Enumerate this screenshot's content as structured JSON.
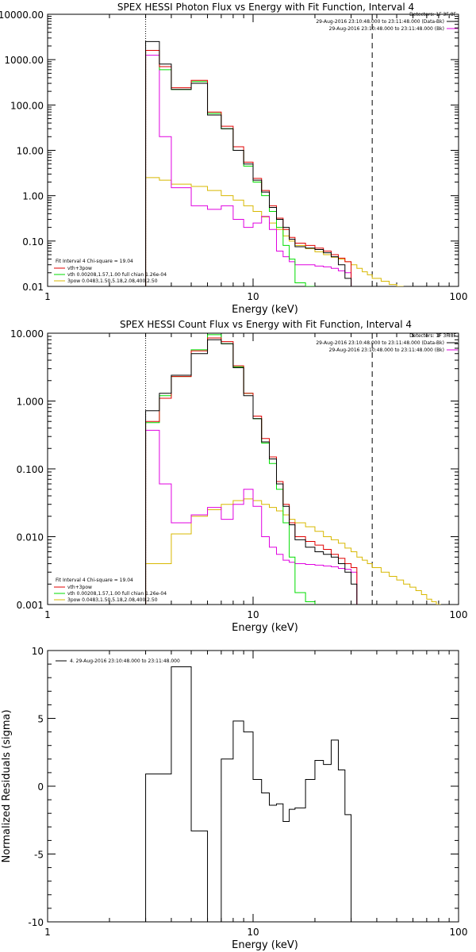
{
  "page": {
    "background": "#ffffff"
  },
  "colors": {
    "axis": "#000000",
    "black": "#000000",
    "red": "#e00000",
    "green": "#00dd00",
    "magenta": "#e000e0",
    "yellow": "#d8b800"
  },
  "chart_data": [
    {
      "type": "line",
      "step": true,
      "title": "SPEX HESSI Photon Flux vs Energy with Fit Function, Interval 4",
      "xlabel": "Energy (keV)",
      "ylabel": "",
      "xscale": "log",
      "yscale": "log",
      "xlim": [
        1,
        100
      ],
      "ylim": [
        0.01,
        10000
      ],
      "xticks": [
        1,
        10,
        100
      ],
      "xtick_labels": [
        "1",
        "10",
        "100"
      ],
      "yticks": [
        0.01,
        0.1,
        1,
        10,
        100,
        1000,
        10000
      ],
      "ytick_labels": [
        "0.01",
        "0.10",
        "1.00",
        "10.00",
        "100.00",
        "1000.00",
        "10000.00"
      ],
      "vlines": [
        {
          "x": 3,
          "style": "dotted"
        },
        {
          "x": 38,
          "style": "dashed"
        }
      ],
      "legend_header": "Detectors: 1F 3F 8F",
      "legend_right": [
        {
          "text": "29-Aug-2016 23:10:48.000 to 23:11:48.000 (Data-Bk)",
          "color": "#000000"
        },
        {
          "text": "29-Aug-2016 23:10:48.000 to 23:11:48.000 (Bk)",
          "color": "#e000e0"
        }
      ],
      "legend_left_header": "Fit Interval 4   Chi-square = 19.04",
      "legend_left": [
        {
          "text": "vth+3pow",
          "color": "#e00000"
        },
        {
          "text": "vth 0.00208,1.57,1.00  full chian 1.26e-04",
          "color": "#00dd00"
        },
        {
          "text": "3pow 0.0483,1.50,5.18,2.08,400,2.50",
          "color": "#d8b800"
        }
      ],
      "edges": [
        3,
        3.5,
        4,
        5,
        6,
        7,
        8,
        9,
        10,
        11,
        12,
        13,
        14,
        15,
        16,
        18,
        20,
        22,
        24,
        26,
        28,
        30,
        32,
        34,
        36,
        38
      ],
      "series": [
        {
          "name": "Data-Bk",
          "color": "#000000",
          "values": [
            2500,
            800,
            220,
            300,
            60,
            30,
            10,
            5,
            2.2,
            1.2,
            0.55,
            0.3,
            0.2,
            0.11,
            0.075,
            0.07,
            0.065,
            0.055,
            0.045,
            0.03,
            0.015,
            null,
            null,
            null,
            null
          ]
        },
        {
          "name": "vth+3pow",
          "color": "#e00000",
          "values": [
            1600,
            700,
            240,
            350,
            70,
            34,
            12,
            5.5,
            2.4,
            1.3,
            0.6,
            0.32,
            0.18,
            0.12,
            0.09,
            0.08,
            0.07,
            0.06,
            0.05,
            0.042,
            0.035,
            null,
            null,
            null,
            null
          ]
        },
        {
          "name": "vth",
          "color": "#00dd00",
          "values": [
            1600,
            600,
            220,
            330,
            65,
            30,
            10,
            4.5,
            2,
            1,
            0.45,
            0.2,
            0.08,
            0.04,
            0.012,
            0.0085,
            null,
            null,
            null,
            null,
            null,
            null,
            null,
            null,
            null
          ]
        },
        {
          "name": "Bk",
          "color": "#e000e0",
          "values": [
            1250,
            20,
            1.5,
            0.6,
            0.5,
            0.6,
            0.3,
            0.2,
            0.25,
            0.35,
            0.18,
            0.06,
            0.045,
            0.035,
            0.03,
            0.03,
            0.028,
            0.027,
            0.025,
            0.022,
            0.02,
            null,
            null,
            null,
            null
          ]
        }
      ],
      "series_extended": {
        "name": "3pow",
        "color": "#d8b800",
        "edges": [
          3,
          3.5,
          4,
          5,
          6,
          7,
          8,
          9,
          10,
          11,
          12,
          13,
          14,
          15,
          16,
          18,
          20,
          22,
          24,
          26,
          28,
          30,
          32,
          34,
          36,
          38,
          42,
          46,
          50,
          54
        ],
        "values": [
          2.5,
          2.2,
          1.8,
          1.6,
          1.3,
          1.0,
          0.8,
          0.6,
          0.45,
          0.34,
          0.25,
          0.18,
          0.13,
          0.1,
          0.08,
          0.068,
          0.058,
          0.05,
          0.044,
          0.04,
          0.035,
          0.03,
          0.025,
          0.021,
          0.018,
          0.015,
          0.013,
          0.011,
          0.01
        ]
      }
    },
    {
      "type": "line",
      "step": true,
      "title": "SPEX HESSI Count Flux vs Energy with Fit Function, Interval 4",
      "xlabel": "Energy (keV)",
      "ylabel": "",
      "xscale": "log",
      "yscale": "log",
      "xlim": [
        1,
        100
      ],
      "ylim": [
        0.001,
        10
      ],
      "xticks": [
        1,
        10,
        100
      ],
      "xtick_labels": [
        "1",
        "10",
        "100"
      ],
      "yticks": [
        0.001,
        0.01,
        0.1,
        1,
        10
      ],
      "ytick_labels": [
        "0.001",
        "0.010",
        "0.100",
        "1.000",
        "10.000"
      ],
      "vlines": [
        {
          "x": 3,
          "style": "dotted"
        },
        {
          "x": 38,
          "style": "dashed"
        }
      ],
      "legend_header": "Detectors: 1F 3F 8F",
      "legend_right": [
        {
          "text": "29-Aug-2016 23:10:48.000 to 23:11:48.000 (Data-Bk)",
          "color": "#000000"
        },
        {
          "text": "29-Aug-2016 23:10:48.000 to 23:11:48.000 (Bk)",
          "color": "#e000e0"
        }
      ],
      "legend_left_header": "Fit Interval 4   Chi-square = 19.04",
      "legend_left": [
        {
          "text": "vth+3pow",
          "color": "#e00000"
        },
        {
          "text": "vth 0.00208,1.57,1.00  full chian 1.26e-04",
          "color": "#00dd00"
        },
        {
          "text": "3pow 0.0483,1.50,5.18,2.08,400,2.50",
          "color": "#d8b800"
        }
      ],
      "edges": [
        3,
        3.5,
        4,
        5,
        6,
        7,
        8,
        9,
        10,
        11,
        12,
        13,
        14,
        15,
        16,
        18,
        20,
        22,
        24,
        26,
        28,
        30,
        32,
        34,
        36,
        38
      ],
      "series": [
        {
          "name": "Data-Bk",
          "color": "#000000",
          "values": [
            0.72,
            1.3,
            2.4,
            5,
            8,
            7,
            3.1,
            1.2,
            0.55,
            0.25,
            0.14,
            0.06,
            0.028,
            0.015,
            0.009,
            0.007,
            0.006,
            0.0055,
            0.005,
            0.004,
            0.003,
            0.002,
            null,
            null,
            null
          ]
        },
        {
          "name": "vth+3pow",
          "color": "#e00000",
          "values": [
            0.5,
            1.1,
            2.3,
            5.5,
            8.5,
            7.5,
            3.3,
            1.3,
            0.6,
            0.28,
            0.15,
            0.065,
            0.03,
            0.016,
            0.01,
            0.0085,
            0.0075,
            0.0065,
            0.0055,
            0.0048,
            0.004,
            0.0035,
            null,
            null,
            null
          ]
        },
        {
          "name": "vth",
          "color": "#00dd00",
          "values": [
            0.48,
            1.2,
            2.3,
            5.7,
            9.5,
            7,
            3.2,
            1.3,
            0.55,
            0.24,
            0.12,
            0.05,
            0.016,
            0.005,
            0.0015,
            0.0011,
            null,
            null,
            null,
            null,
            null,
            null,
            null,
            null,
            null
          ]
        },
        {
          "name": "Bk",
          "color": "#e000e0",
          "values": [
            0.37,
            0.06,
            0.016,
            0.021,
            0.027,
            0.018,
            0.03,
            0.05,
            0.028,
            0.01,
            0.007,
            0.0055,
            0.0045,
            0.0042,
            0.004,
            0.0039,
            0.0038,
            0.0037,
            0.0036,
            0.0034,
            0.0033,
            0.003,
            null,
            null,
            null
          ]
        }
      ],
      "series_extended": {
        "name": "3pow",
        "color": "#d8b800",
        "edges": [
          3,
          3.5,
          4,
          5,
          6,
          7,
          8,
          9,
          10,
          11,
          12,
          13,
          14,
          15,
          16,
          18,
          20,
          22,
          24,
          26,
          28,
          30,
          32,
          34,
          36,
          38,
          42,
          46,
          50,
          54,
          58,
          62,
          66,
          70,
          74,
          78,
          82
        ],
        "values": [
          0.004,
          0.004,
          0.011,
          0.02,
          0.025,
          0.03,
          0.034,
          0.036,
          0.034,
          0.03,
          0.027,
          0.024,
          0.021,
          0.018,
          0.016,
          0.014,
          0.012,
          0.01,
          0.009,
          0.008,
          0.0068,
          0.006,
          0.005,
          0.0045,
          0.004,
          0.0035,
          0.003,
          0.0026,
          0.0023,
          0.002,
          0.0018,
          0.0016,
          0.0014,
          0.0012,
          0.0011,
          0.001
        ]
      }
    },
    {
      "type": "line",
      "step": true,
      "title": "",
      "xlabel": "Energy (keV)",
      "ylabel": "Normalized Residuals (sigma)",
      "xscale": "log",
      "yscale": "linear",
      "xlim": [
        1,
        100
      ],
      "ylim": [
        -10,
        10
      ],
      "xticks": [
        1,
        10,
        100
      ],
      "xtick_labels": [
        "1",
        "10",
        "100"
      ],
      "yticks": [
        -10,
        -5,
        0,
        5,
        10
      ],
      "ytick_labels": [
        "-10",
        "-5",
        "0",
        "5",
        "10"
      ],
      "legend": [
        {
          "text": "4. 29-Aug-2016 23:10:48.000 to 23:11:48.000",
          "color": "#000000"
        }
      ],
      "edges": [
        3,
        4,
        5,
        6,
        7,
        8,
        9,
        10,
        11,
        12,
        13,
        14,
        15,
        16,
        18,
        20,
        22,
        24,
        26,
        28,
        30,
        32,
        34,
        36,
        38
      ],
      "series": [
        {
          "name": "4. 29-Aug-2016 23:10:48.000 to 23:11:48.000",
          "color": "#000000",
          "values": [
            0.9,
            8.8,
            -3.3,
            -10,
            2.0,
            4.8,
            4.0,
            0.5,
            -0.5,
            -1.4,
            -1.3,
            -2.6,
            -1.7,
            -1.6,
            0.5,
            1.9,
            1.6,
            3.4,
            1.2,
            -2.1,
            null,
            null,
            null,
            null
          ]
        }
      ]
    }
  ]
}
